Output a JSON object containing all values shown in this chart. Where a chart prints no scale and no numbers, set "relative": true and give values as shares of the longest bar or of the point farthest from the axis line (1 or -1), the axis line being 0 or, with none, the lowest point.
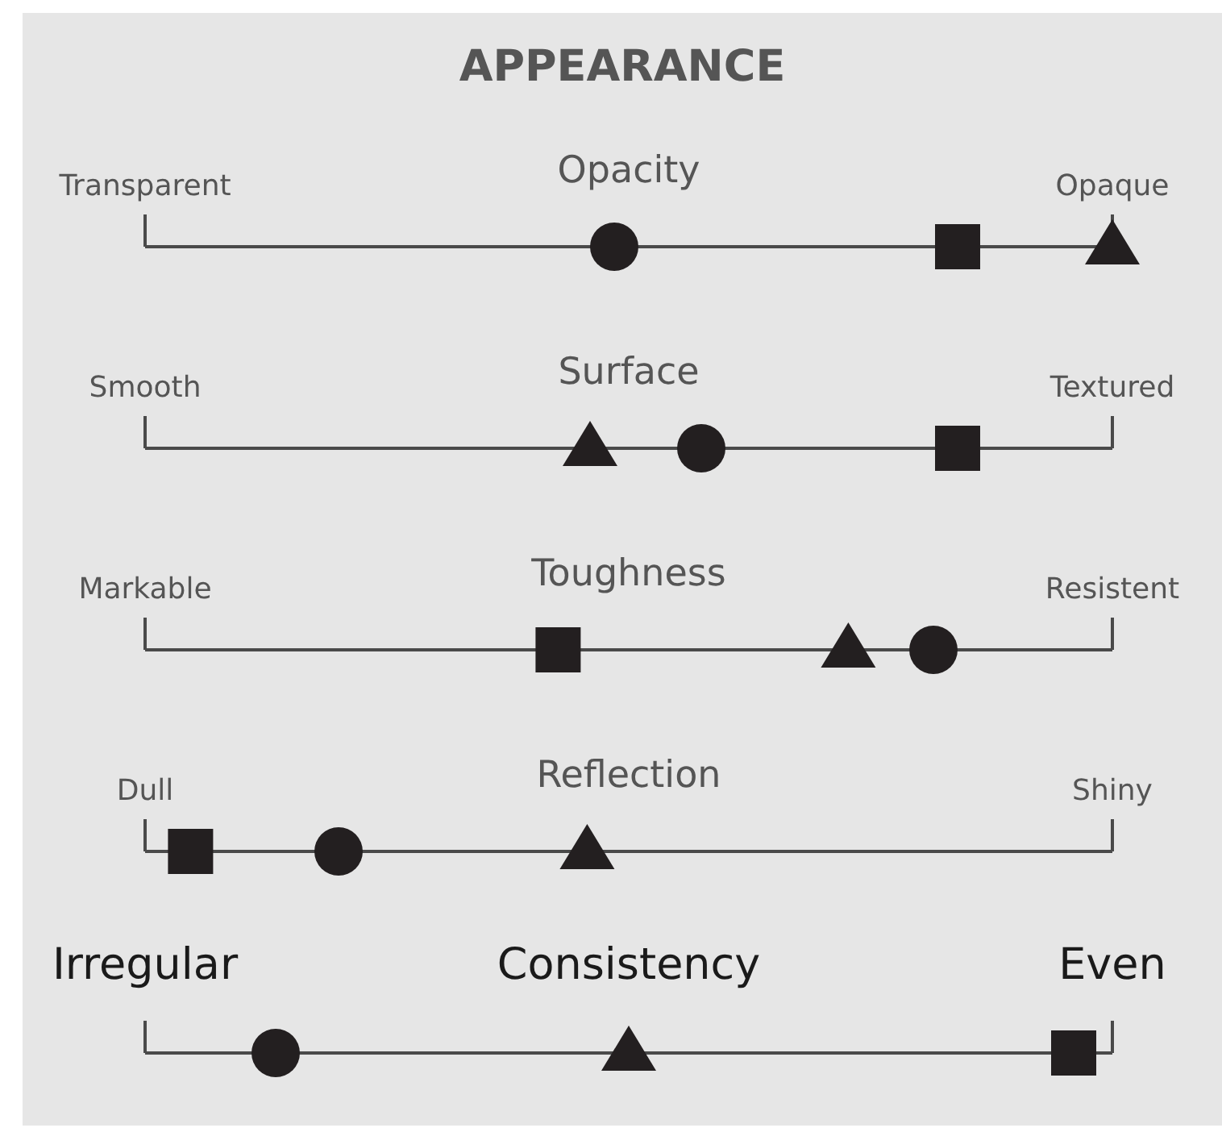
{
  "chart_data": {
    "type": "scatter",
    "orientation": "horizontal",
    "relative": true,
    "grid": "y",
    "title": "APPEARANCE",
    "categories": [
      "Opacity",
      "Surface",
      "Toughness",
      "Reflection",
      "Consistency"
    ],
    "annotations": [
      "Transparent",
      "Opaque",
      "Smooth",
      "Textured",
      "Markable",
      "Resistent",
      "Dull",
      "Shiny",
      "Irregular",
      "Even"
    ],
    "series": [
      {
        "marker": "circle",
        "color": "#231f20",
        "values": [
          0.485,
          0.575,
          0.815,
          0.2,
          0.135
        ]
      },
      {
        "marker": "square",
        "color": "#231f20",
        "values": [
          0.84,
          0.84,
          0.427,
          0.047,
          0.96
        ]
      },
      {
        "marker": "triangle",
        "color": "#231f20",
        "values": [
          1.0,
          0.46,
          0.727,
          0.457,
          0.5
        ]
      }
    ]
  }
}
